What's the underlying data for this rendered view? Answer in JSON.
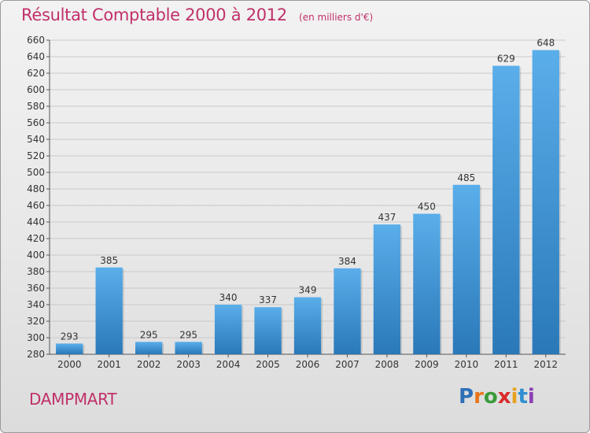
{
  "header": {
    "title": "Résultat Comptable 2000 à 2012",
    "subtitle": "(en milliers d'€)"
  },
  "footer": {
    "place": "DAMPMART",
    "logo_letters": [
      "P",
      "r",
      "o",
      "x",
      "i",
      "t",
      "i"
    ],
    "logo_colors": [
      "#2f6fb8",
      "#e8741a",
      "#3a9a3a",
      "#d92a2a",
      "#e8a11a",
      "#2f8fd0",
      "#8a3fb5"
    ]
  },
  "chart_data": {
    "type": "bar",
    "title": "Résultat Comptable 2000 à 2012",
    "subtitle": "(en milliers d'€)",
    "categories": [
      "2000",
      "2001",
      "2002",
      "2003",
      "2004",
      "2005",
      "2006",
      "2007",
      "2008",
      "2009",
      "2010",
      "2011",
      "2012"
    ],
    "values": [
      293,
      385,
      295,
      295,
      340,
      337,
      349,
      384,
      437,
      450,
      485,
      629,
      648
    ],
    "ylim": [
      280,
      660
    ],
    "yticks": [
      280,
      300,
      320,
      340,
      360,
      380,
      400,
      420,
      440,
      460,
      480,
      500,
      520,
      540,
      560,
      580,
      600,
      620,
      640,
      660
    ],
    "grid": true,
    "bar_color_top": "#5aaeea",
    "bar_color_bottom": "#2a78b8",
    "xlabel": "",
    "ylabel": ""
  }
}
